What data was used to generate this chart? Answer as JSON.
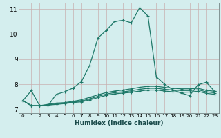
{
  "title": "",
  "xlabel": "Humidex (Indice chaleur)",
  "bg_color": "#d4eeee",
  "axis_bg_color": "#d4eeee",
  "bottom_bar_color": "#3a7070",
  "grid_color": "#c8b0b0",
  "line_color": "#1e7868",
  "xlim": [
    -0.5,
    23.5
  ],
  "ylim": [
    6.85,
    11.25
  ],
  "yticks": [
    7,
    8,
    9,
    10,
    11
  ],
  "xticks": [
    0,
    1,
    2,
    3,
    4,
    5,
    6,
    7,
    8,
    9,
    10,
    11,
    12,
    13,
    14,
    15,
    16,
    17,
    18,
    19,
    20,
    21,
    22,
    23
  ],
  "series": [
    [
      7.35,
      7.75,
      7.15,
      7.15,
      7.6,
      7.7,
      7.85,
      8.1,
      8.75,
      9.85,
      10.15,
      10.5,
      10.55,
      10.45,
      11.05,
      10.72,
      8.3,
      8.0,
      7.78,
      7.65,
      7.55,
      7.98,
      8.08,
      7.72
    ],
    [
      7.35,
      7.15,
      7.15,
      7.2,
      7.25,
      7.27,
      7.32,
      7.38,
      7.48,
      7.58,
      7.67,
      7.73,
      7.77,
      7.82,
      7.88,
      7.92,
      7.92,
      7.88,
      7.84,
      7.82,
      7.82,
      7.84,
      7.76,
      7.72
    ],
    [
      7.35,
      7.15,
      7.15,
      7.18,
      7.22,
      7.25,
      7.29,
      7.33,
      7.42,
      7.52,
      7.61,
      7.67,
      7.7,
      7.74,
      7.8,
      7.84,
      7.84,
      7.8,
      7.77,
      7.75,
      7.75,
      7.78,
      7.7,
      7.66
    ],
    [
      7.35,
      7.15,
      7.15,
      7.17,
      7.2,
      7.23,
      7.27,
      7.3,
      7.38,
      7.47,
      7.56,
      7.62,
      7.65,
      7.68,
      7.73,
      7.77,
      7.77,
      7.73,
      7.7,
      7.68,
      7.69,
      7.72,
      7.64,
      7.6
    ]
  ]
}
